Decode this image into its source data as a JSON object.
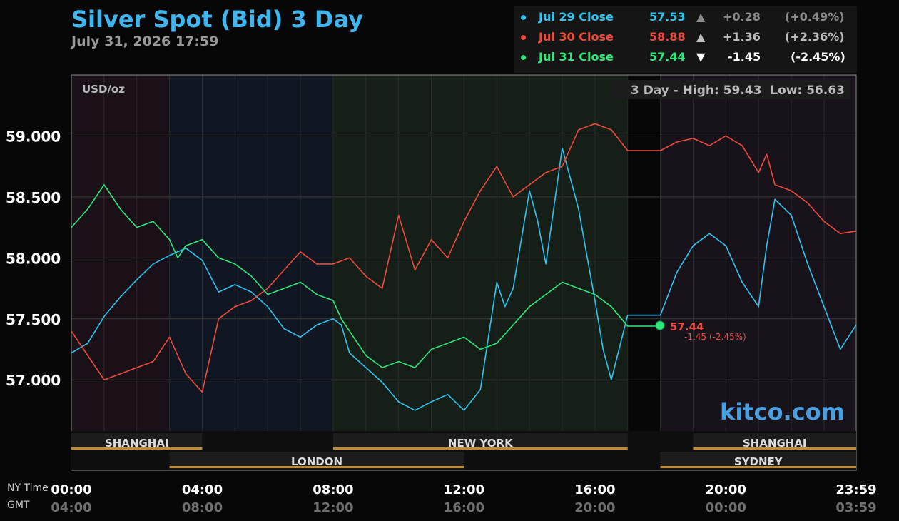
{
  "header": {
    "title": "Silver Spot (Bid) 3 Day",
    "subtitle": "July 31, 2026 17:59"
  },
  "legend": [
    {
      "label": "Jul 29 Close",
      "price": "57.53",
      "arrow": "▲",
      "change": "+0.28",
      "pct": "(+0.49%)",
      "color": "#2fc4f0",
      "text_color": "#8a8a8a"
    },
    {
      "label": "Jul 30 Close",
      "price": "58.88",
      "arrow": "▲",
      "change": "+1.36",
      "pct": "(+2.36%)",
      "color": "#ef4b3c",
      "text_color": "#bdbdbd"
    },
    {
      "label": "Jul 31 Close",
      "price": "57.44",
      "arrow": "▼",
      "change": "-1.45",
      "pct": "(-2.45%)",
      "color": "#2ee87a",
      "text_color": "#ffffff"
    }
  ],
  "chart_info": {
    "unit": "USD/oz",
    "high_low": "3 Day - High: 59.43  Low: 56.63",
    "watermark": "kitco.com",
    "last_price": "57.44",
    "last_change": "-1.45 (-2.45%)"
  },
  "time_labels": {
    "ny_label": "NY Time",
    "gmt_label": "GMT"
  },
  "sessions": [
    {
      "name": "SHANGHAI",
      "start": 0,
      "end": 4,
      "row": 1
    },
    {
      "name": "NEW YORK",
      "start": 8,
      "end": 17,
      "row": 1
    },
    {
      "name": "SHANGHAI",
      "start": 19,
      "end": 23.983,
      "row": 1
    },
    {
      "name": "LONDON",
      "start": 3,
      "end": 12,
      "row": 2
    },
    {
      "name": "SYDNEY",
      "start": 18,
      "end": 23.983,
      "row": 2
    }
  ],
  "chart_data": {
    "type": "line",
    "title": "Silver Spot (Bid) 3 Day",
    "ylabel": "USD/oz",
    "ylim": [
      56.58,
      59.5
    ],
    "xlim": [
      0,
      23.983
    ],
    "yticks": [
      "57.000",
      "57.500",
      "58.000",
      "58.500",
      "59.000"
    ],
    "ytick_values": [
      57.0,
      57.5,
      58.0,
      58.5,
      59.0
    ],
    "xticks": [
      {
        "ny": "00:00",
        "gmt": "04:00",
        "h": 0
      },
      {
        "ny": "04:00",
        "gmt": "08:00",
        "h": 4
      },
      {
        "ny": "08:00",
        "gmt": "12:00",
        "h": 8
      },
      {
        "ny": "12:00",
        "gmt": "16:00",
        "h": 12
      },
      {
        "ny": "16:00",
        "gmt": "20:00",
        "h": 16
      },
      {
        "ny": "20:00",
        "gmt": "00:00",
        "h": 20
      },
      {
        "ny": "23:59",
        "gmt": "03:59",
        "h": 23.983
      }
    ],
    "series": [
      {
        "name": "Jul 29 Close",
        "color": "#2fc4f0",
        "x": [
          0,
          0.5,
          1,
          1.5,
          2,
          2.5,
          3,
          3.5,
          4,
          4.25,
          4.5,
          5,
          5.5,
          6,
          6.5,
          7,
          7.5,
          8,
          8.25,
          8.5,
          9,
          9.5,
          10,
          10.5,
          11,
          11.5,
          12,
          12.5,
          13,
          13.25,
          13.5,
          14,
          14.25,
          14.5,
          15,
          15.25,
          15.5,
          16,
          16.25,
          16.5,
          17,
          18,
          18.5,
          19,
          19.5,
          20,
          20.5,
          21,
          21.25,
          21.5,
          22,
          22.5,
          23,
          23.5,
          23.983
        ],
        "y": [
          57.22,
          57.3,
          57.52,
          57.68,
          57.82,
          57.95,
          58.02,
          58.08,
          57.98,
          57.85,
          57.72,
          57.78,
          57.72,
          57.6,
          57.42,
          57.35,
          57.45,
          57.5,
          57.45,
          57.22,
          57.1,
          56.98,
          56.82,
          56.75,
          56.82,
          56.88,
          56.75,
          56.92,
          57.8,
          57.6,
          57.75,
          58.55,
          58.3,
          57.95,
          58.9,
          58.65,
          58.4,
          57.65,
          57.25,
          57.0,
          57.53,
          57.53,
          57.88,
          58.1,
          58.2,
          58.1,
          57.8,
          57.6,
          58.1,
          58.48,
          58.35,
          57.95,
          57.6,
          57.25,
          57.45
        ]
      },
      {
        "name": "Jul 30 Close",
        "color": "#ef4b3c",
        "x": [
          0,
          0.5,
          1,
          1.5,
          2,
          2.5,
          3,
          3.5,
          4,
          4.25,
          4.5,
          5,
          5.5,
          6,
          6.5,
          7,
          7.5,
          8,
          8.5,
          9,
          9.5,
          10,
          10.5,
          11,
          11.5,
          12,
          12.5,
          13,
          13.5,
          14,
          14.5,
          15,
          15.5,
          16,
          16.5,
          17,
          18,
          18.5,
          19,
          19.5,
          20,
          20.5,
          21,
          21.25,
          21.5,
          22,
          22.5,
          23,
          23.5,
          23.983
        ],
        "y": [
          57.4,
          57.2,
          57.0,
          57.05,
          57.1,
          57.15,
          57.35,
          57.05,
          56.9,
          57.2,
          57.5,
          57.6,
          57.65,
          57.75,
          57.9,
          58.05,
          57.95,
          57.95,
          58.0,
          57.85,
          57.75,
          58.35,
          57.9,
          58.15,
          58.0,
          58.3,
          58.55,
          58.75,
          58.5,
          58.6,
          58.7,
          58.75,
          59.05,
          59.1,
          59.05,
          58.88,
          58.88,
          58.95,
          58.98,
          58.92,
          59.0,
          58.92,
          58.7,
          58.85,
          58.6,
          58.55,
          58.45,
          58.3,
          58.2,
          58.22
        ]
      },
      {
        "name": "Jul 31 Close",
        "color": "#2ee87a",
        "x": [
          0,
          0.5,
          1,
          1.5,
          2,
          2.5,
          3,
          3.25,
          3.5,
          4,
          4.5,
          5,
          5.5,
          6,
          6.5,
          7,
          7.5,
          8,
          8.25,
          8.5,
          9,
          9.5,
          10,
          10.5,
          11,
          11.5,
          12,
          12.5,
          13,
          13.5,
          14,
          14.5,
          15,
          15.5,
          16,
          16.5,
          17,
          18
        ],
        "y": [
          58.25,
          58.4,
          58.6,
          58.4,
          58.25,
          58.3,
          58.15,
          58.0,
          58.1,
          58.15,
          58.0,
          57.95,
          57.85,
          57.7,
          57.75,
          57.8,
          57.7,
          57.65,
          57.5,
          57.4,
          57.2,
          57.1,
          57.15,
          57.1,
          57.25,
          57.3,
          57.35,
          57.25,
          57.3,
          57.45,
          57.6,
          57.7,
          57.8,
          57.75,
          57.7,
          57.6,
          57.44,
          57.44
        ]
      }
    ]
  }
}
